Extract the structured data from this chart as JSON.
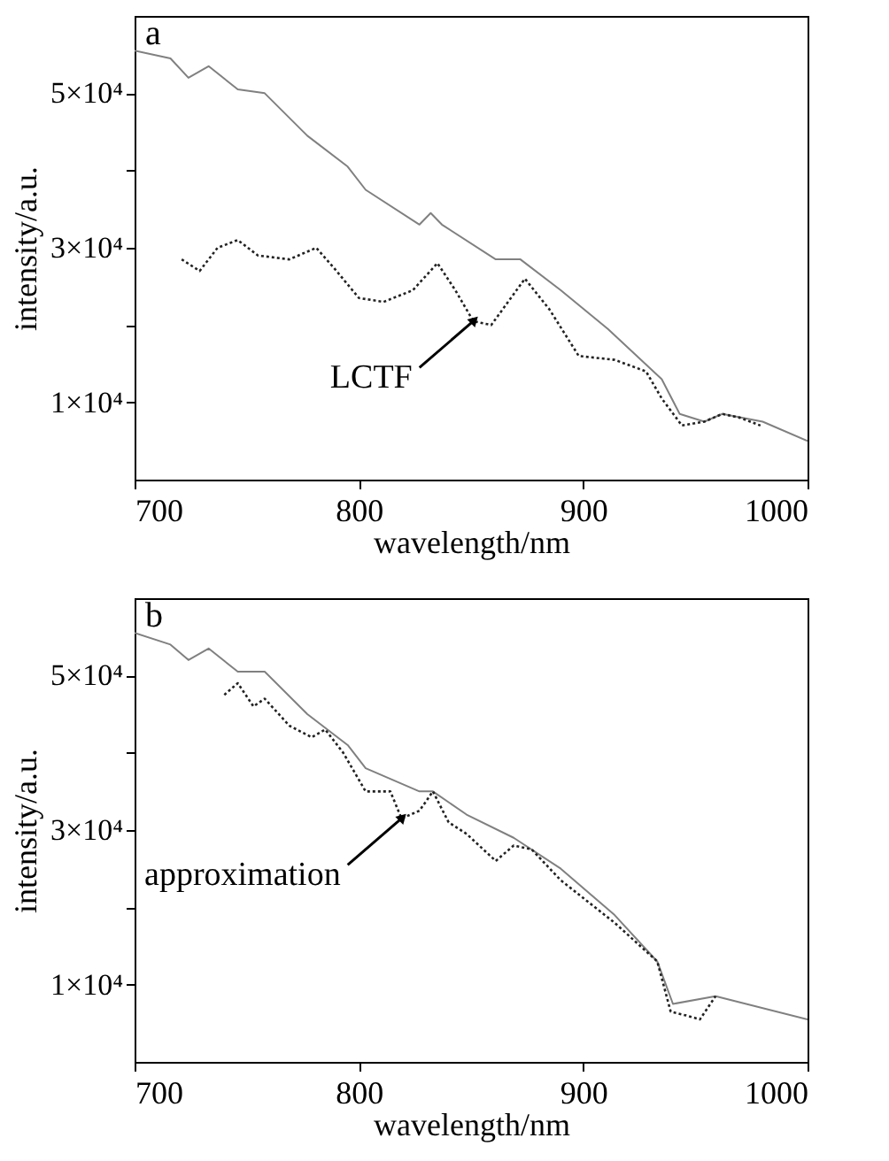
{
  "chart_data": [
    {
      "type": "line",
      "title": "a",
      "xlabel": "wavelength/nm",
      "ylabel": "intensity/a.u.",
      "xlim": [
        700,
        1000
      ],
      "xticks": [
        700,
        800,
        900,
        1000
      ],
      "ylim": [
        0,
        60000
      ],
      "yticks": [
        {
          "value": 10000,
          "label": "1×10⁴"
        },
        {
          "value": 20000,
          "label": null
        },
        {
          "value": 30000,
          "label": "3×10⁴"
        },
        {
          "value": 40000,
          "label": null
        },
        {
          "value": 50000,
          "label": "5×10⁴"
        }
      ],
      "grid": false,
      "legend": false,
      "series": [
        {
          "color": "#808080",
          "line_style": "solid",
          "x": [
            700,
            716,
            724,
            733,
            746,
            758,
            777,
            795,
            803,
            827,
            832,
            837,
            861,
            872,
            890,
            911,
            935,
            943,
            954,
            962,
            980,
            1000
          ],
          "values": [
            55500,
            54500,
            52000,
            53500,
            50500,
            50000,
            44500,
            40500,
            37500,
            33000,
            34500,
            33000,
            28500,
            28500,
            24500,
            19500,
            13000,
            8500,
            7500,
            8500,
            7500,
            5000
          ]
        },
        {
          "color": "#222222",
          "line_style": "dotted",
          "x": [
            721,
            729,
            737,
            746,
            755,
            769,
            781,
            790,
            800,
            811,
            824,
            835,
            843,
            851,
            859,
            874,
            885,
            898,
            914,
            928,
            935,
            944,
            954,
            962,
            970,
            979
          ],
          "values": [
            28500,
            27000,
            30000,
            31000,
            29000,
            28500,
            30000,
            27000,
            23500,
            23000,
            24500,
            28000,
            24500,
            20500,
            20000,
            26000,
            22000,
            16000,
            15500,
            14000,
            10500,
            7000,
            7500,
            8500,
            8000,
            7000
          ]
        }
      ],
      "annotations": [
        {
          "text": "LCTF",
          "x": 851,
          "y": 20500
        }
      ]
    },
    {
      "type": "line",
      "title": "b",
      "xlabel": "wavelength/nm",
      "ylabel": "intensity/a.u.",
      "xlim": [
        700,
        1000
      ],
      "xticks": [
        700,
        800,
        900,
        1000
      ],
      "ylim": [
        0,
        60000
      ],
      "yticks": [
        {
          "value": 10000,
          "label": "1×10⁴"
        },
        {
          "value": 20000,
          "label": null
        },
        {
          "value": 30000,
          "label": "3×10⁴"
        },
        {
          "value": 40000,
          "label": null
        },
        {
          "value": 50000,
          "label": "5×10⁴"
        }
      ],
      "grid": false,
      "legend": false,
      "series": [
        {
          "color": "#808080",
          "line_style": "solid",
          "x": [
            700,
            716,
            724,
            733,
            746,
            758,
            777,
            795,
            803,
            811,
            827,
            833,
            848,
            869,
            890,
            914,
            933,
            940,
            959,
            1000
          ],
          "values": [
            55500,
            54000,
            52000,
            53500,
            50500,
            50500,
            45000,
            41000,
            38000,
            37000,
            35000,
            35000,
            32000,
            29000,
            25000,
            19000,
            13000,
            7500,
            8500,
            5500
          ]
        },
        {
          "color": "#222222",
          "line_style": "dotted",
          "x": [
            740,
            746,
            753,
            758,
            769,
            779,
            785,
            793,
            803,
            814,
            819,
            827,
            833,
            840,
            848,
            861,
            869,
            877,
            890,
            914,
            933,
            939,
            946,
            952,
            959
          ],
          "values": [
            47500,
            49000,
            46000,
            47000,
            43500,
            42000,
            43000,
            40000,
            35000,
            35000,
            31500,
            32500,
            35000,
            31000,
            29500,
            26000,
            28000,
            27500,
            23500,
            18000,
            13000,
            6500,
            6000,
            5500,
            8500
          ]
        }
      ],
      "annotations": [
        {
          "text": "approximation",
          "x": 819,
          "y": 31500
        }
      ]
    }
  ]
}
